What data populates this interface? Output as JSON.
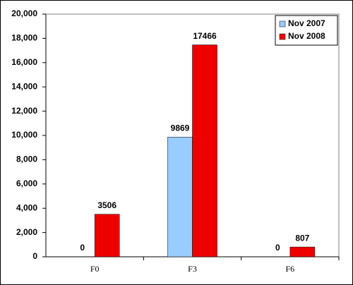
{
  "chart_data": {
    "type": "bar",
    "categories": [
      "F0",
      "F3",
      "F6"
    ],
    "series": [
      {
        "name": "Nov 2007",
        "color": "#99ccff",
        "values": [
          0,
          9869,
          0
        ]
      },
      {
        "name": "Nov 2008",
        "color": "#ee0000",
        "values": [
          3506,
          17466,
          807
        ]
      }
    ],
    "ylim": [
      0,
      20000
    ],
    "yticks": [
      0,
      {
        "value": 2000,
        "label": "2,000"
      },
      {
        "value": 4000,
        "label": "4,000"
      },
      {
        "value": 6000,
        "label": "6,000"
      },
      {
        "value": 8000,
        "label": "8,000"
      },
      {
        "value": 10000,
        "label": "10,000"
      },
      {
        "value": 12000,
        "label": "12,000"
      },
      {
        "value": 14000,
        "label": "14,000"
      },
      {
        "value": 16000,
        "label": "16,000"
      },
      {
        "value": 18000,
        "label": "18,000"
      },
      {
        "value": 20000,
        "label": "20,000"
      }
    ],
    "legend": "top-right"
  }
}
